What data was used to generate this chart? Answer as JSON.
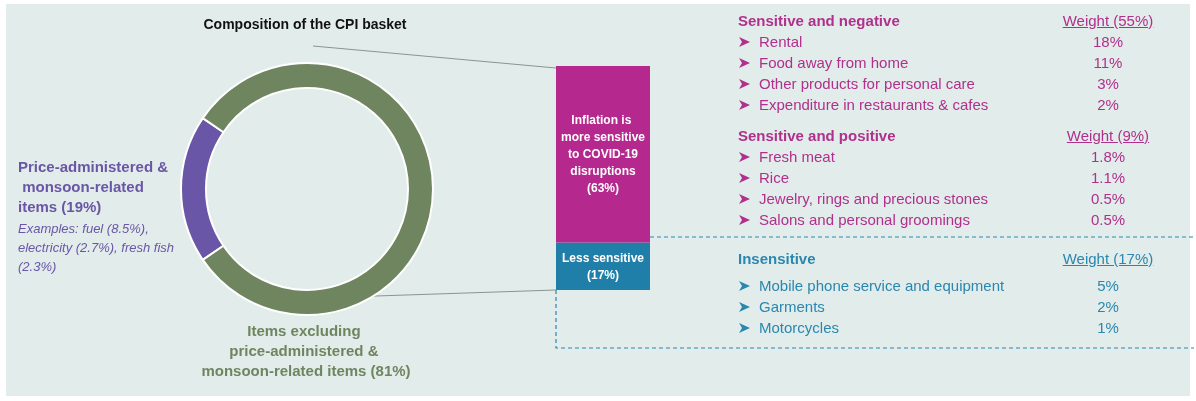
{
  "chart_data": [
    {
      "type": "donut",
      "title": "Composition of the CPI basket",
      "categories": [
        "Price-administered & monsoon-related items",
        "Items excluding price-administered & monsoon-related items"
      ],
      "values": [
        19,
        81
      ],
      "value_labels": [
        "(19%)",
        "(81%)"
      ],
      "colors": [
        "#6a56a6",
        "#6f8560"
      ],
      "annotations": [
        "Examples: fuel (8.5%), electricity (2.7%), fresh fish (2.3%)"
      ],
      "legend": false
    },
    {
      "type": "bar",
      "stacked": true,
      "categories": [
        null
      ],
      "series": [
        {
          "name": "Less sensitive",
          "color": "#1f7fa8",
          "values": [
            17
          ],
          "value_labels": [
            "(17%)"
          ]
        },
        {
          "name": "Inflation is more sensitive to COVID-19 disruptions",
          "color": "#b5288e",
          "values": [
            63
          ],
          "value_labels": [
            "(63%)"
          ]
        }
      ],
      "legend": false
    },
    {
      "type": "other",
      "title": "Sensitive and negative",
      "subtitle": "Weight (55%)",
      "color": "#b0308c",
      "annotations": [
        "Rental",
        "18%",
        "Food away from home",
        "11%",
        "Other products for personal care",
        "3%",
        "Expenditure in restaurants & cafes",
        "2%"
      ]
    },
    {
      "type": "other",
      "title": "Sensitive and positive",
      "subtitle": "Weight (9%)",
      "color": "#b0308c",
      "annotations": [
        "Fresh meat",
        "1.8%",
        "Rice",
        "1.1%",
        "Jewelry, rings and precious stones",
        "0.5%",
        "Salons and personal groomings",
        "0.5%"
      ]
    },
    {
      "type": "other",
      "title": "Insensitive",
      "subtitle": "Weight (17%)",
      "color": "#2a87b0",
      "annotations": [
        "Mobile phone service and equipment",
        "5%",
        "Garments",
        "2%",
        "Motorcycles",
        "1%"
      ]
    }
  ]
}
